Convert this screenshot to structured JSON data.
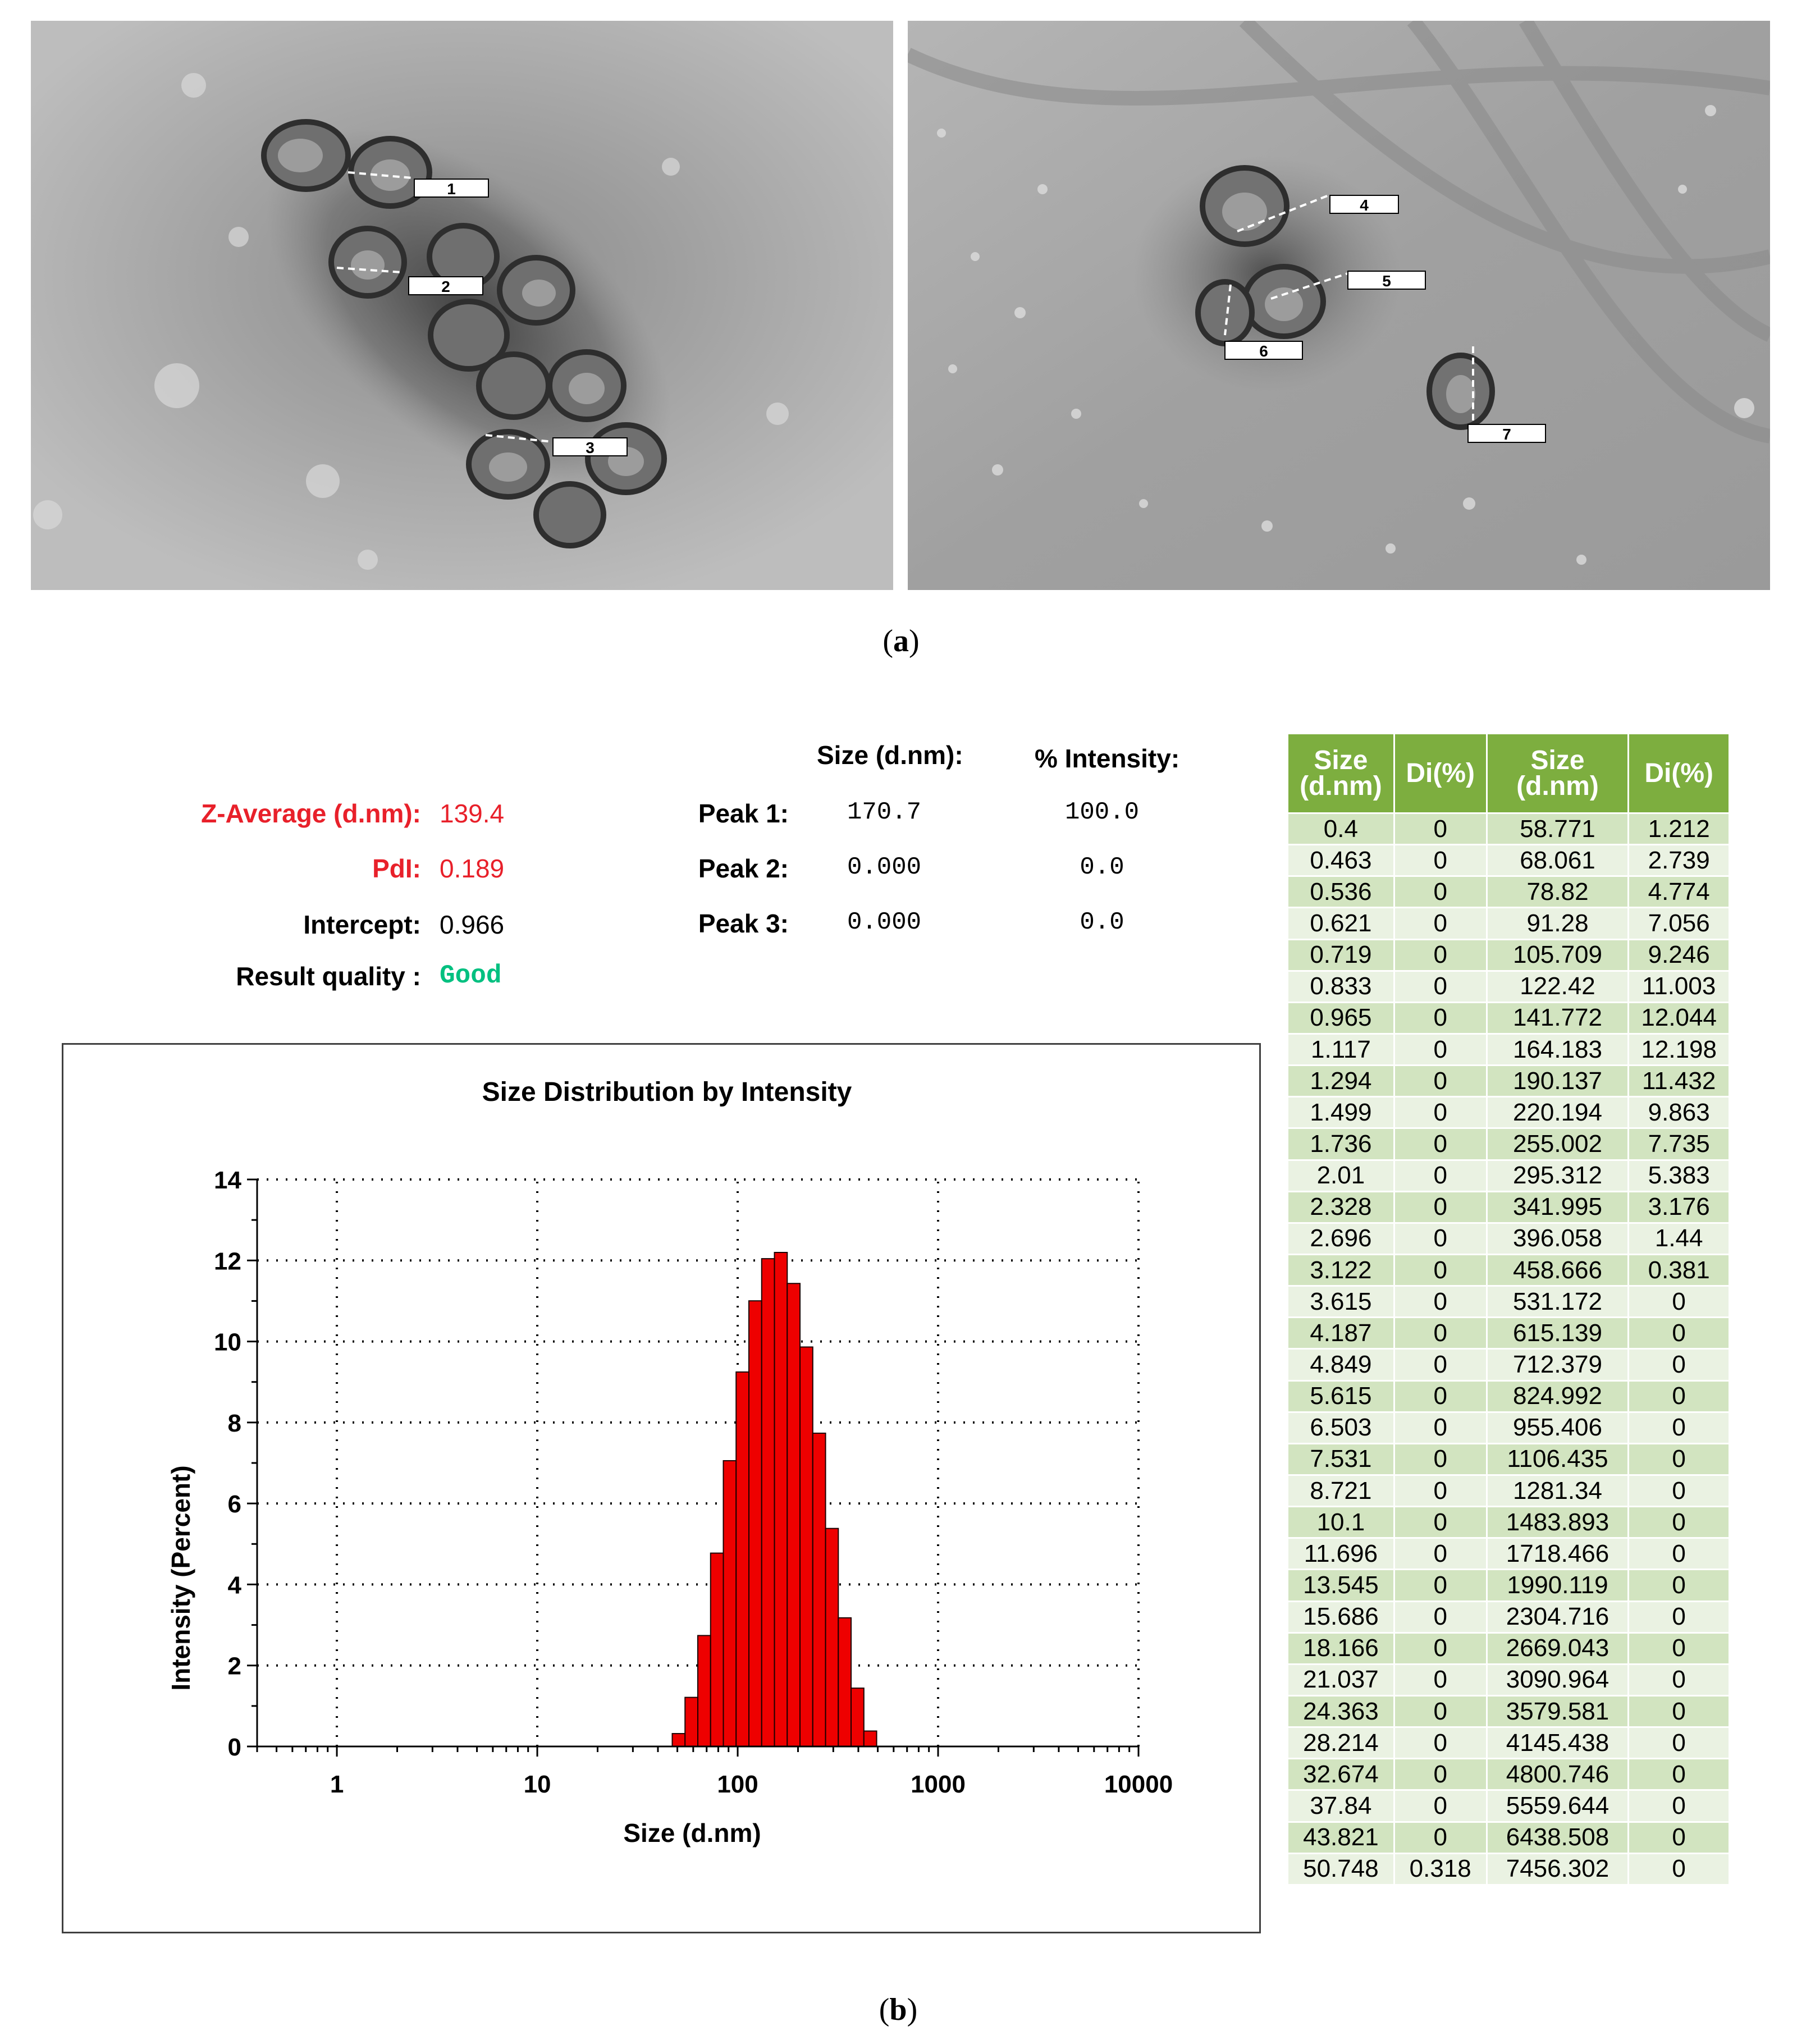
{
  "panel_a": {
    "caption": "(a)",
    "caption_letter": "a",
    "left_labels": [
      "1",
      "2",
      "3"
    ],
    "right_labels": [
      "4",
      "5",
      "6",
      "7"
    ]
  },
  "panel_b": {
    "caption": "(b)",
    "caption_letter": "b",
    "summary": {
      "z_average_label": "Z-Average (d.nm):",
      "z_average_value": "139.4",
      "pdi_label": "PdI:",
      "pdi_value": "0.189",
      "intercept_label": "Intercept:",
      "intercept_value": "0.966",
      "result_quality_label": "Result quality :",
      "result_quality_value": "Good",
      "size_header": "Size (d.nm):",
      "intensity_header": "% Intensity:",
      "peaks": [
        {
          "label": "Peak 1:",
          "size": "170.7",
          "intensity": "100.0"
        },
        {
          "label": "Peak 2:",
          "size": "0.000",
          "intensity": "0.0"
        },
        {
          "label": "Peak 3:",
          "size": "0.000",
          "intensity": "0.0"
        }
      ]
    },
    "table": {
      "headers": [
        "Size (d.nm)",
        "Di(%)",
        "Size (d.nm)",
        "Di(%)"
      ],
      "header_color": "#7dae3f",
      "rows": [
        [
          "0.4",
          "0",
          "58.771",
          "1.212"
        ],
        [
          "0.463",
          "0",
          "68.061",
          "2.739"
        ],
        [
          "0.536",
          "0",
          "78.82",
          "4.774"
        ],
        [
          "0.621",
          "0",
          "91.28",
          "7.056"
        ],
        [
          "0.719",
          "0",
          "105.709",
          "9.246"
        ],
        [
          "0.833",
          "0",
          "122.42",
          "11.003"
        ],
        [
          "0.965",
          "0",
          "141.772",
          "12.044"
        ],
        [
          "1.117",
          "0",
          "164.183",
          "12.198"
        ],
        [
          "1.294",
          "0",
          "190.137",
          "11.432"
        ],
        [
          "1.499",
          "0",
          "220.194",
          "9.863"
        ],
        [
          "1.736",
          "0",
          "255.002",
          "7.735"
        ],
        [
          "2.01",
          "0",
          "295.312",
          "5.383"
        ],
        [
          "2.328",
          "0",
          "341.995",
          "3.176"
        ],
        [
          "2.696",
          "0",
          "396.058",
          "1.44"
        ],
        [
          "3.122",
          "0",
          "458.666",
          "0.381"
        ],
        [
          "3.615",
          "0",
          "531.172",
          "0"
        ],
        [
          "4.187",
          "0",
          "615.139",
          "0"
        ],
        [
          "4.849",
          "0",
          "712.379",
          "0"
        ],
        [
          "5.615",
          "0",
          "824.992",
          "0"
        ],
        [
          "6.503",
          "0",
          "955.406",
          "0"
        ],
        [
          "7.531",
          "0",
          "1106.435",
          "0"
        ],
        [
          "8.721",
          "0",
          "1281.34",
          "0"
        ],
        [
          "10.1",
          "0",
          "1483.893",
          "0"
        ],
        [
          "11.696",
          "0",
          "1718.466",
          "0"
        ],
        [
          "13.545",
          "0",
          "1990.119",
          "0"
        ],
        [
          "15.686",
          "0",
          "2304.716",
          "0"
        ],
        [
          "18.166",
          "0",
          "2669.043",
          "0"
        ],
        [
          "21.037",
          "0",
          "3090.964",
          "0"
        ],
        [
          "24.363",
          "0",
          "3579.581",
          "0"
        ],
        [
          "28.214",
          "0",
          "4145.438",
          "0"
        ],
        [
          "32.674",
          "0",
          "4800.746",
          "0"
        ],
        [
          "37.84",
          "0",
          "5559.644",
          "0"
        ],
        [
          "43.821",
          "0",
          "6438.508",
          "0"
        ],
        [
          "50.748",
          "0.318",
          "7456.302",
          "0"
        ]
      ]
    }
  },
  "chart_data": {
    "type": "bar",
    "title": "Size Distribution by Intensity",
    "xlabel": "Size (d.nm)",
    "ylabel": "Intensity (Percent)",
    "x_scale": "log",
    "xlim": [
      0.4,
      10000
    ],
    "ylim": [
      0,
      14
    ],
    "x_ticks": [
      "1",
      "10",
      "100",
      "1000",
      "10000"
    ],
    "y_ticks": [
      "0",
      "2",
      "4",
      "6",
      "8",
      "10",
      "12",
      "14"
    ],
    "grid": true,
    "bar_color": "#ee0000",
    "x": [
      50.748,
      58.771,
      68.061,
      78.82,
      91.28,
      105.709,
      122.42,
      141.772,
      164.183,
      190.137,
      220.194,
      255.002,
      295.312,
      341.995,
      396.058,
      458.666
    ],
    "values": [
      0.318,
      1.212,
      2.739,
      4.774,
      7.056,
      9.246,
      11.003,
      12.044,
      12.198,
      11.432,
      9.863,
      7.735,
      5.383,
      3.176,
      1.44,
      0.381
    ]
  }
}
